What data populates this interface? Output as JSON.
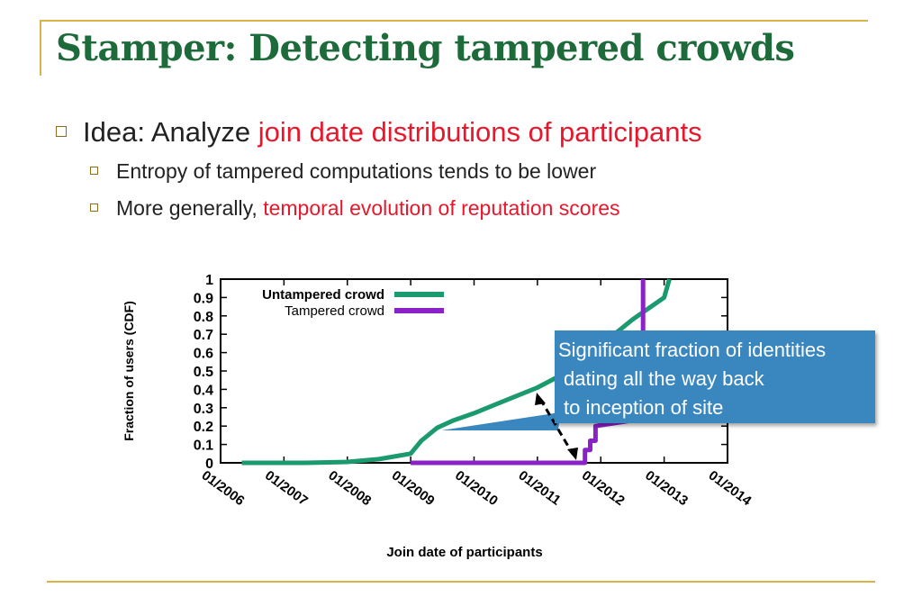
{
  "slide": {
    "title": "Stamper: Detecting tampered crowds",
    "bullet": {
      "lead": "Idea: Analyze ",
      "highlight": "join date distributions of participants"
    },
    "sub_bullets": [
      {
        "lead": "Entropy of tampered computations tends to be lower",
        "highlight": ""
      },
      {
        "lead": "More generally, ",
        "highlight": "temporal evolution of reputation scores"
      }
    ],
    "callout": {
      "lines": [
        "Significant fraction of identities",
        "dating all the way back",
        "to inception of site"
      ],
      "color": "#3a87c0"
    }
  },
  "colors": {
    "title": "#1d6b3a",
    "highlight": "#e8172b",
    "rule": "#d9b44a"
  },
  "chart_data": {
    "type": "line",
    "xlabel": "Join date of participants",
    "ylabel": "Fraction of users (CDF)",
    "x_ticks": [
      "01/2006",
      "01/2007",
      "01/2008",
      "01/2009",
      "01/2010",
      "01/2011",
      "01/2012",
      "01/2013",
      "01/2014"
    ],
    "xlim": [
      "01/2006",
      "01/2014"
    ],
    "y_ticks": [
      "0",
      "0.1",
      "0.2",
      "0.3",
      "0.4",
      "0.5",
      "0.6",
      "0.7",
      "0.8",
      "0.9",
      "1"
    ],
    "ylim": [
      0,
      1
    ],
    "legend_position": "top-left",
    "series": [
      {
        "name": "Untampered crowd",
        "color": "#1a9a6e",
        "points": [
          [
            "2006-05",
            0.0
          ],
          [
            "2007-05",
            0.0
          ],
          [
            "2008-01",
            0.005
          ],
          [
            "2008-07",
            0.02
          ],
          [
            "2009-01",
            0.05
          ],
          [
            "2009-03",
            0.12
          ],
          [
            "2009-06",
            0.19
          ],
          [
            "2009-09",
            0.23
          ],
          [
            "2010-01",
            0.27
          ],
          [
            "2010-07",
            0.34
          ],
          [
            "2011-01",
            0.41
          ],
          [
            "2011-07",
            0.5
          ],
          [
            "2012-01",
            0.64
          ],
          [
            "2012-07",
            0.78
          ],
          [
            "2013-01",
            0.9
          ],
          [
            "2013-02",
            1.0
          ]
        ]
      },
      {
        "name": "Tampered crowd",
        "color": "#8a22c8",
        "points": [
          [
            "2009-01",
            0.0
          ],
          [
            "2011-10",
            0.0
          ],
          [
            "2011-10",
            0.07
          ],
          [
            "2011-11",
            0.07
          ],
          [
            "2011-11",
            0.12
          ],
          [
            "2011-12",
            0.12
          ],
          [
            "2011-12",
            0.2
          ],
          [
            "2012-09",
            0.24
          ],
          [
            "2012-09",
            1.0
          ]
        ]
      }
    ]
  }
}
